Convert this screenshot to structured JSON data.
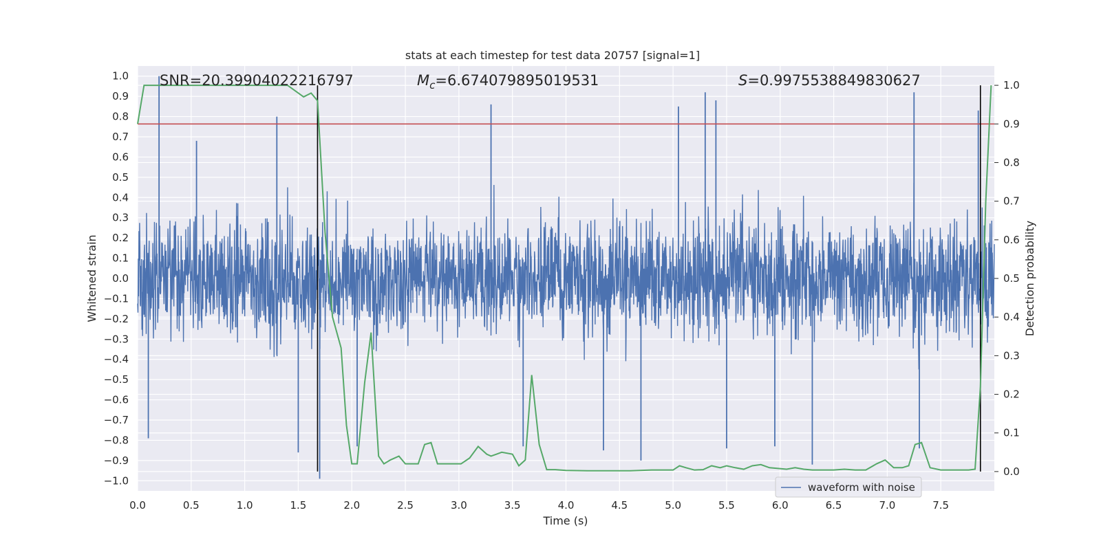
{
  "chart_data": {
    "type": "line",
    "title": "stats at each timestep for test data 20757 [signal=1]",
    "xlabel": "Time (s)",
    "ylabel": "Whitened strain",
    "y2label": "Detection probability",
    "xlim": [
      0.0,
      8.0
    ],
    "ylim": [
      -1.05,
      1.05
    ],
    "y2lim": [
      -0.05,
      1.05
    ],
    "xticks": [
      "0.0",
      "0.5",
      "1.0",
      "1.5",
      "2.0",
      "2.5",
      "3.0",
      "3.5",
      "4.0",
      "4.5",
      "5.0",
      "5.5",
      "6.0",
      "6.5",
      "7.0",
      "7.5"
    ],
    "yticks": [
      "1.0",
      "0.9",
      "0.8",
      "0.7",
      "0.6",
      "0.5",
      "0.4",
      "0.3",
      "0.2",
      "0.1",
      "0.0",
      "−0.1",
      "−0.2",
      "−0.3",
      "−0.4",
      "−0.5",
      "−0.6",
      "−0.7",
      "−0.8",
      "−0.9",
      "−1.0"
    ],
    "y2ticks": [
      "1.0",
      "0.9",
      "0.8",
      "0.7",
      "0.6",
      "0.5",
      "0.4",
      "0.3",
      "0.2",
      "0.1",
      "0.0"
    ],
    "annotations": {
      "snr": "SNR=20.39904022216797",
      "mc_symbol": "M",
      "mc_sub": "c",
      "mc_value": "=6.674079895019531",
      "s_symbol": "S",
      "s_value": "=0.9975538849830627"
    },
    "threshold": {
      "axis": "y2",
      "value": 0.9,
      "color": "#c44e52"
    },
    "markers": {
      "x": [
        1.68,
        7.87
      ],
      "color": "#000000"
    },
    "legend": {
      "label": "waveform with noise",
      "location": "lower-right"
    },
    "colors": {
      "waveform": "#4c72b0",
      "probability": "#55a868",
      "background": "#eaeaf2",
      "grid": "#ffffff"
    },
    "series": [
      {
        "name": "waveform with noise",
        "axis": "y",
        "envelope_note": "dense noise, approx range -0.95..0.95, typical +/-0.45",
        "peaks": [
          {
            "x": 0.2,
            "value": 1.0
          },
          {
            "x": 0.55,
            "value": 0.68
          },
          {
            "x": 1.3,
            "value": 0.8
          },
          {
            "x": 3.3,
            "value": 0.86
          },
          {
            "x": 5.05,
            "value": 0.85
          },
          {
            "x": 5.3,
            "value": 0.92
          },
          {
            "x": 5.4,
            "value": 0.88
          },
          {
            "x": 7.25,
            "value": 0.92
          },
          {
            "x": 7.85,
            "value": 0.83
          }
        ],
        "troughs": [
          {
            "x": 0.1,
            "value": -0.79
          },
          {
            "x": 1.5,
            "value": -0.86
          },
          {
            "x": 1.7,
            "value": -0.99
          },
          {
            "x": 2.05,
            "value": -0.83
          },
          {
            "x": 3.6,
            "value": -0.83
          },
          {
            "x": 4.35,
            "value": -0.85
          },
          {
            "x": 4.7,
            "value": -0.9
          },
          {
            "x": 5.5,
            "value": -0.84
          },
          {
            "x": 5.95,
            "value": -0.83
          },
          {
            "x": 6.3,
            "value": -0.92
          },
          {
            "x": 7.3,
            "value": -0.84
          }
        ]
      },
      {
        "name": "detection probability",
        "axis": "y2",
        "x": [
          0.0,
          0.06,
          0.12,
          0.2,
          0.3,
          0.4,
          0.5,
          0.6,
          0.7,
          0.8,
          0.9,
          1.0,
          1.1,
          1.2,
          1.3,
          1.4,
          1.5,
          1.55,
          1.62,
          1.68,
          1.75,
          1.82,
          1.9,
          1.95,
          2.0,
          2.05,
          2.12,
          2.18,
          2.25,
          2.3,
          2.36,
          2.44,
          2.5,
          2.56,
          2.62,
          2.68,
          2.74,
          2.8,
          2.86,
          2.94,
          3.02,
          3.1,
          3.18,
          3.26,
          3.3,
          3.35,
          3.4,
          3.5,
          3.56,
          3.62,
          3.68,
          3.75,
          3.82,
          3.9,
          4.0,
          4.2,
          4.4,
          4.6,
          4.8,
          5.0,
          5.06,
          5.12,
          5.2,
          5.28,
          5.36,
          5.44,
          5.5,
          5.58,
          5.66,
          5.74,
          5.82,
          5.9,
          5.98,
          6.06,
          6.14,
          6.22,
          6.3,
          6.4,
          6.5,
          6.6,
          6.7,
          6.8,
          6.9,
          6.98,
          7.06,
          7.14,
          7.2,
          7.26,
          7.32,
          7.4,
          7.5,
          7.6,
          7.7,
          7.76,
          7.82,
          7.87,
          7.92,
          7.97
        ],
        "values": [
          0.9,
          1.0,
          1.0,
          1.0,
          1.0,
          1.0,
          1.0,
          1.0,
          1.0,
          1.0,
          1.0,
          1.0,
          1.0,
          1.0,
          1.0,
          1.0,
          0.98,
          0.97,
          0.98,
          0.96,
          0.62,
          0.4,
          0.32,
          0.12,
          0.02,
          0.02,
          0.23,
          0.36,
          0.04,
          0.02,
          0.03,
          0.04,
          0.02,
          0.02,
          0.02,
          0.07,
          0.075,
          0.02,
          0.02,
          0.02,
          0.02,
          0.035,
          0.065,
          0.045,
          0.04,
          0.045,
          0.05,
          0.045,
          0.015,
          0.03,
          0.25,
          0.07,
          0.005,
          0.005,
          0.003,
          0.002,
          0.002,
          0.002,
          0.004,
          0.004,
          0.015,
          0.01,
          0.004,
          0.005,
          0.015,
          0.01,
          0.015,
          0.01,
          0.006,
          0.015,
          0.018,
          0.01,
          0.008,
          0.006,
          0.01,
          0.006,
          0.004,
          0.004,
          0.004,
          0.006,
          0.004,
          0.004,
          0.02,
          0.03,
          0.01,
          0.01,
          0.015,
          0.07,
          0.075,
          0.01,
          0.004,
          0.004,
          0.004,
          0.004,
          0.006,
          0.22,
          0.7,
          1.0
        ]
      }
    ]
  }
}
